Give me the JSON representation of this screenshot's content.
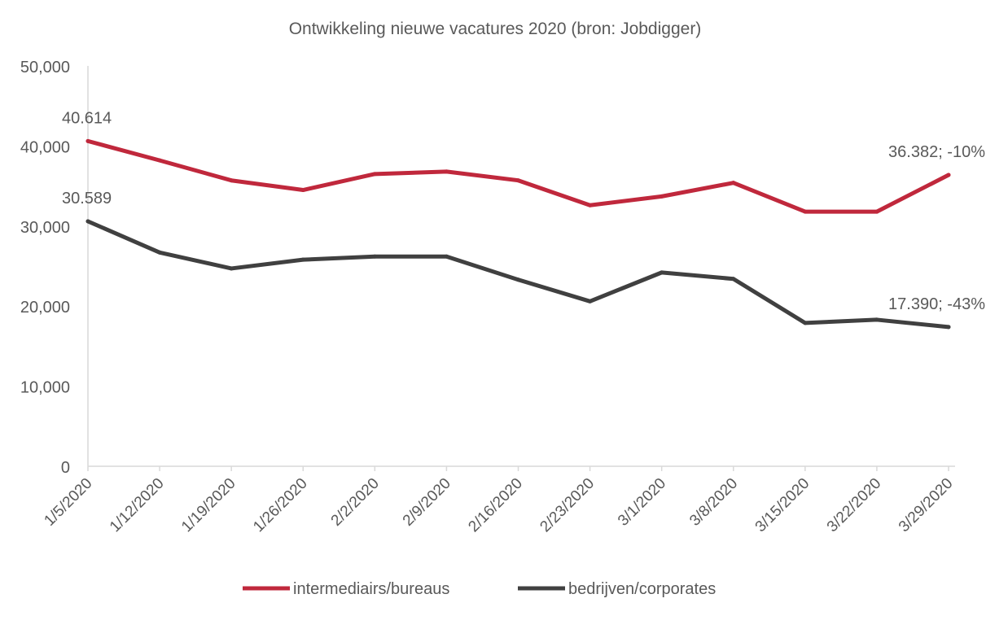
{
  "chart_data": {
    "type": "line",
    "title": "Ontwikkeling nieuwe vacatures 2020 (bron: Jobdigger)",
    "xlabel": "",
    "ylabel": "",
    "ylim": [
      0,
      50000
    ],
    "yticks": [
      0,
      10000,
      20000,
      30000,
      40000,
      50000
    ],
    "ytick_labels": [
      "0",
      "10,000",
      "20,000",
      "30,000",
      "40,000",
      "50,000"
    ],
    "categories": [
      "1/5/2020",
      "1/12/2020",
      "1/19/2020",
      "1/26/2020",
      "2/2/2020",
      "2/9/2020",
      "2/16/2020",
      "2/23/2020",
      "3/1/2020",
      "3/8/2020",
      "3/15/2020",
      "3/22/2020",
      "3/29/2020"
    ],
    "grid": false,
    "legend_placement": "bottom",
    "series": [
      {
        "name": "intermediairs/bureaus",
        "color": "#c0283c",
        "values": [
          40614,
          38200,
          35700,
          34500,
          36500,
          36800,
          35700,
          32600,
          33700,
          35400,
          31800,
          31800,
          36382
        ]
      },
      {
        "name": "bedrijven/corporates",
        "color": "#404040",
        "values": [
          30589,
          26700,
          24700,
          25800,
          26200,
          26200,
          23300,
          20600,
          24200,
          23400,
          17900,
          18300,
          17390
        ]
      }
    ],
    "annotations": [
      {
        "series": 0,
        "point": 0,
        "text": "40.614"
      },
      {
        "series": 1,
        "point": 0,
        "text": "30.589"
      },
      {
        "series": 0,
        "point": 12,
        "text": "36.382; -10%"
      },
      {
        "series": 1,
        "point": 12,
        "text": "17.390; -43%"
      }
    ]
  }
}
